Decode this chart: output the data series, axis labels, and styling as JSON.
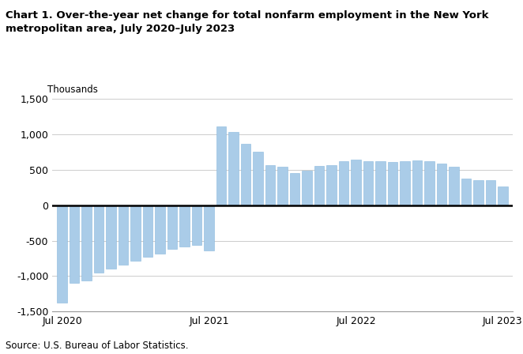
{
  "title": "Chart 1. Over-the-year net change for total nonfarm employment in the New York\nmetropolitan area, July 2020–July 2023",
  "ylabel": "Thousands",
  "source": "Source: U.S. Bureau of Labor Statistics.",
  "bar_color": "#aacce8",
  "bar_edge_color": "#88b8dc",
  "background_color": "#ffffff",
  "ylim": [
    -1500,
    1500
  ],
  "yticks": [
    -1500,
    -1000,
    -500,
    0,
    500,
    1000,
    1500
  ],
  "xtick_labels": [
    "Jul 2020",
    "Jul 2021",
    "Jul 2022",
    "Jul 2023"
  ],
  "xtick_positions": [
    0,
    12,
    24,
    36
  ],
  "values": [
    -1380,
    -1100,
    -1060,
    -950,
    -900,
    -840,
    -780,
    -730,
    -680,
    -620,
    -580,
    -560,
    -640,
    1110,
    1040,
    870,
    760,
    570,
    550,
    460,
    490,
    560,
    570,
    620,
    640,
    620,
    620,
    610,
    620,
    630,
    620,
    590,
    540,
    380,
    360,
    350,
    270
  ],
  "num_bars": 37,
  "figsize": [
    6.62,
    4.48
  ],
  "dpi": 100
}
